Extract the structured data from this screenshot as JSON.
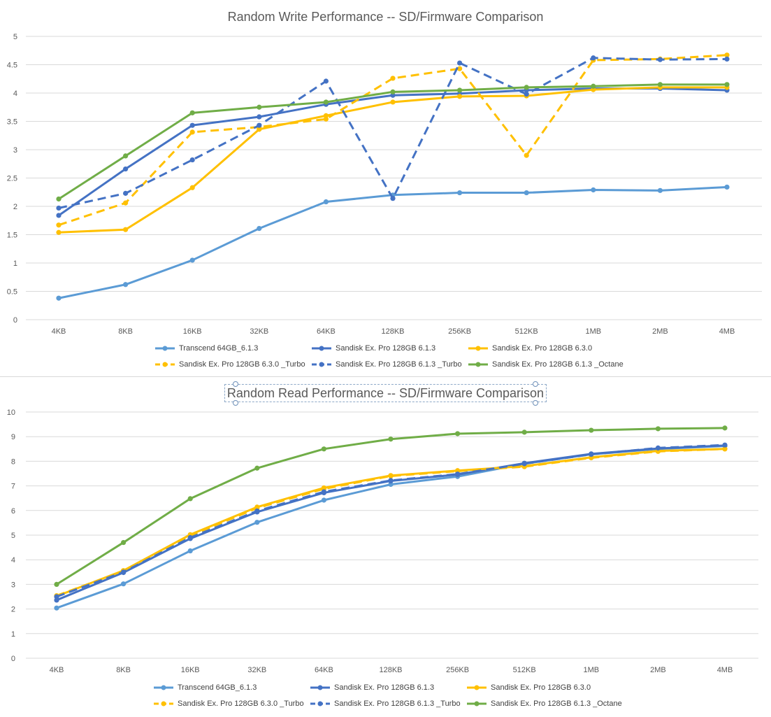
{
  "chart_data": [
    {
      "type": "line",
      "title": "Random Write Performance -- SD/Firmware Comparison",
      "xlabel": "",
      "ylabel": "",
      "categories": [
        "4KB",
        "8KB",
        "16KB",
        "32KB",
        "64KB",
        "128KB",
        "256KB",
        "512KB",
        "1MB",
        "2MB",
        "4MB"
      ],
      "ylim": [
        0,
        5
      ],
      "yticks": [
        "0",
        "0.5",
        "1",
        "1.5",
        "2",
        "2.5",
        "3",
        "3.5",
        "4",
        "4.5",
        "5"
      ],
      "grid": "horizontal",
      "legend": "bottom",
      "series": [
        {
          "name": "Transcend 64GB_6.1.3",
          "color": "#5b9bd5",
          "dash": false,
          "values": [
            0.38,
            0.62,
            1.05,
            1.61,
            2.08,
            2.2,
            2.24,
            2.24,
            2.29,
            2.28,
            2.34
          ]
        },
        {
          "name": "Sandisk Ex. Pro  128GB 6.1.3",
          "color": "#4472c4",
          "dash": false,
          "values": [
            1.84,
            2.66,
            3.43,
            3.58,
            3.8,
            3.96,
            3.99,
            4.05,
            4.08,
            4.08,
            4.05
          ]
        },
        {
          "name": "Sandisk Ex. Pro 128GB 6.3.0",
          "color": "#ffc000",
          "dash": false,
          "values": [
            1.54,
            1.59,
            2.33,
            3.36,
            3.6,
            3.84,
            3.94,
            3.95,
            4.06,
            4.1,
            4.1
          ]
        },
        {
          "name": "Sandisk Ex. Pro 128GB 6.3.0 _Turbo",
          "color": "#ffc000",
          "dash": true,
          "values": [
            1.67,
            2.06,
            3.31,
            3.4,
            3.54,
            4.26,
            4.43,
            2.9,
            4.58,
            4.6,
            4.67
          ]
        },
        {
          "name": "Sandisk Ex. Pro 128GB 6.1.3 _Turbo",
          "color": "#4472c4",
          "dash": true,
          "values": [
            1.97,
            2.23,
            2.82,
            3.43,
            4.21,
            2.14,
            4.53,
            3.98,
            4.62,
            4.59,
            4.6
          ]
        },
        {
          "name": "Sandisk Ex. Pro 128GB 6.1.3 _Octane",
          "color": "#70ad47",
          "dash": false,
          "values": [
            2.13,
            2.89,
            3.65,
            3.75,
            3.84,
            4.02,
            4.05,
            4.1,
            4.12,
            4.15,
            4.15
          ]
        }
      ]
    },
    {
      "type": "line",
      "title": "Random Read Performance -- SD/Firmware Comparison",
      "xlabel": "",
      "ylabel": "",
      "categories": [
        "4KB",
        "8KB",
        "16KB",
        "32KB",
        "64KB",
        "128KB",
        "256KB",
        "512KB",
        "1MB",
        "2MB",
        "4MB"
      ],
      "ylim": [
        0,
        10
      ],
      "yticks": [
        "0",
        "1",
        "2",
        "3",
        "4",
        "5",
        "6",
        "7",
        "8",
        "9",
        "10"
      ],
      "grid": "horizontal",
      "legend": "bottom",
      "series": [
        {
          "name": "Transcend 64GB_6.1.3",
          "color": "#5b9bd5",
          "dash": false,
          "values": [
            2.04,
            3.02,
            4.36,
            5.52,
            6.42,
            7.06,
            7.38,
            7.9,
            8.28,
            8.5,
            8.62
          ]
        },
        {
          "name": "Sandisk Ex. Pro  128GB 6.1.3",
          "color": "#4472c4",
          "dash": false,
          "values": [
            2.36,
            3.48,
            4.86,
            5.94,
            6.72,
            7.2,
            7.46,
            7.92,
            8.3,
            8.52,
            8.64
          ]
        },
        {
          "name": "Sandisk Ex. Pro 128GB 6.3.0",
          "color": "#ffc000",
          "dash": false,
          "values": [
            2.52,
            3.56,
            5.02,
            6.14,
            6.92,
            7.42,
            7.62,
            7.8,
            8.16,
            8.42,
            8.5
          ]
        },
        {
          "name": "Sandisk Ex. Pro 128GB 6.3.0 _Turbo",
          "color": "#ffc000",
          "dash": true,
          "values": [
            2.54,
            3.54,
            4.98,
            6.1,
            6.88,
            7.4,
            7.6,
            7.78,
            8.14,
            8.4,
            8.5
          ]
        },
        {
          "name": "Sandisk Ex. Pro 128GB 6.1.3 _Turbo",
          "color": "#4472c4",
          "dash": true,
          "values": [
            2.5,
            3.5,
            4.9,
            5.98,
            6.76,
            7.22,
            7.48,
            7.9,
            8.28,
            8.54,
            8.66
          ]
        },
        {
          "name": "Sandisk Ex. Pro 128GB 6.1.3 _Octane",
          "color": "#70ad47",
          "dash": false,
          "values": [
            3.0,
            4.7,
            6.48,
            7.72,
            8.5,
            8.9,
            9.12,
            9.18,
            9.26,
            9.32,
            9.35
          ]
        }
      ]
    }
  ]
}
